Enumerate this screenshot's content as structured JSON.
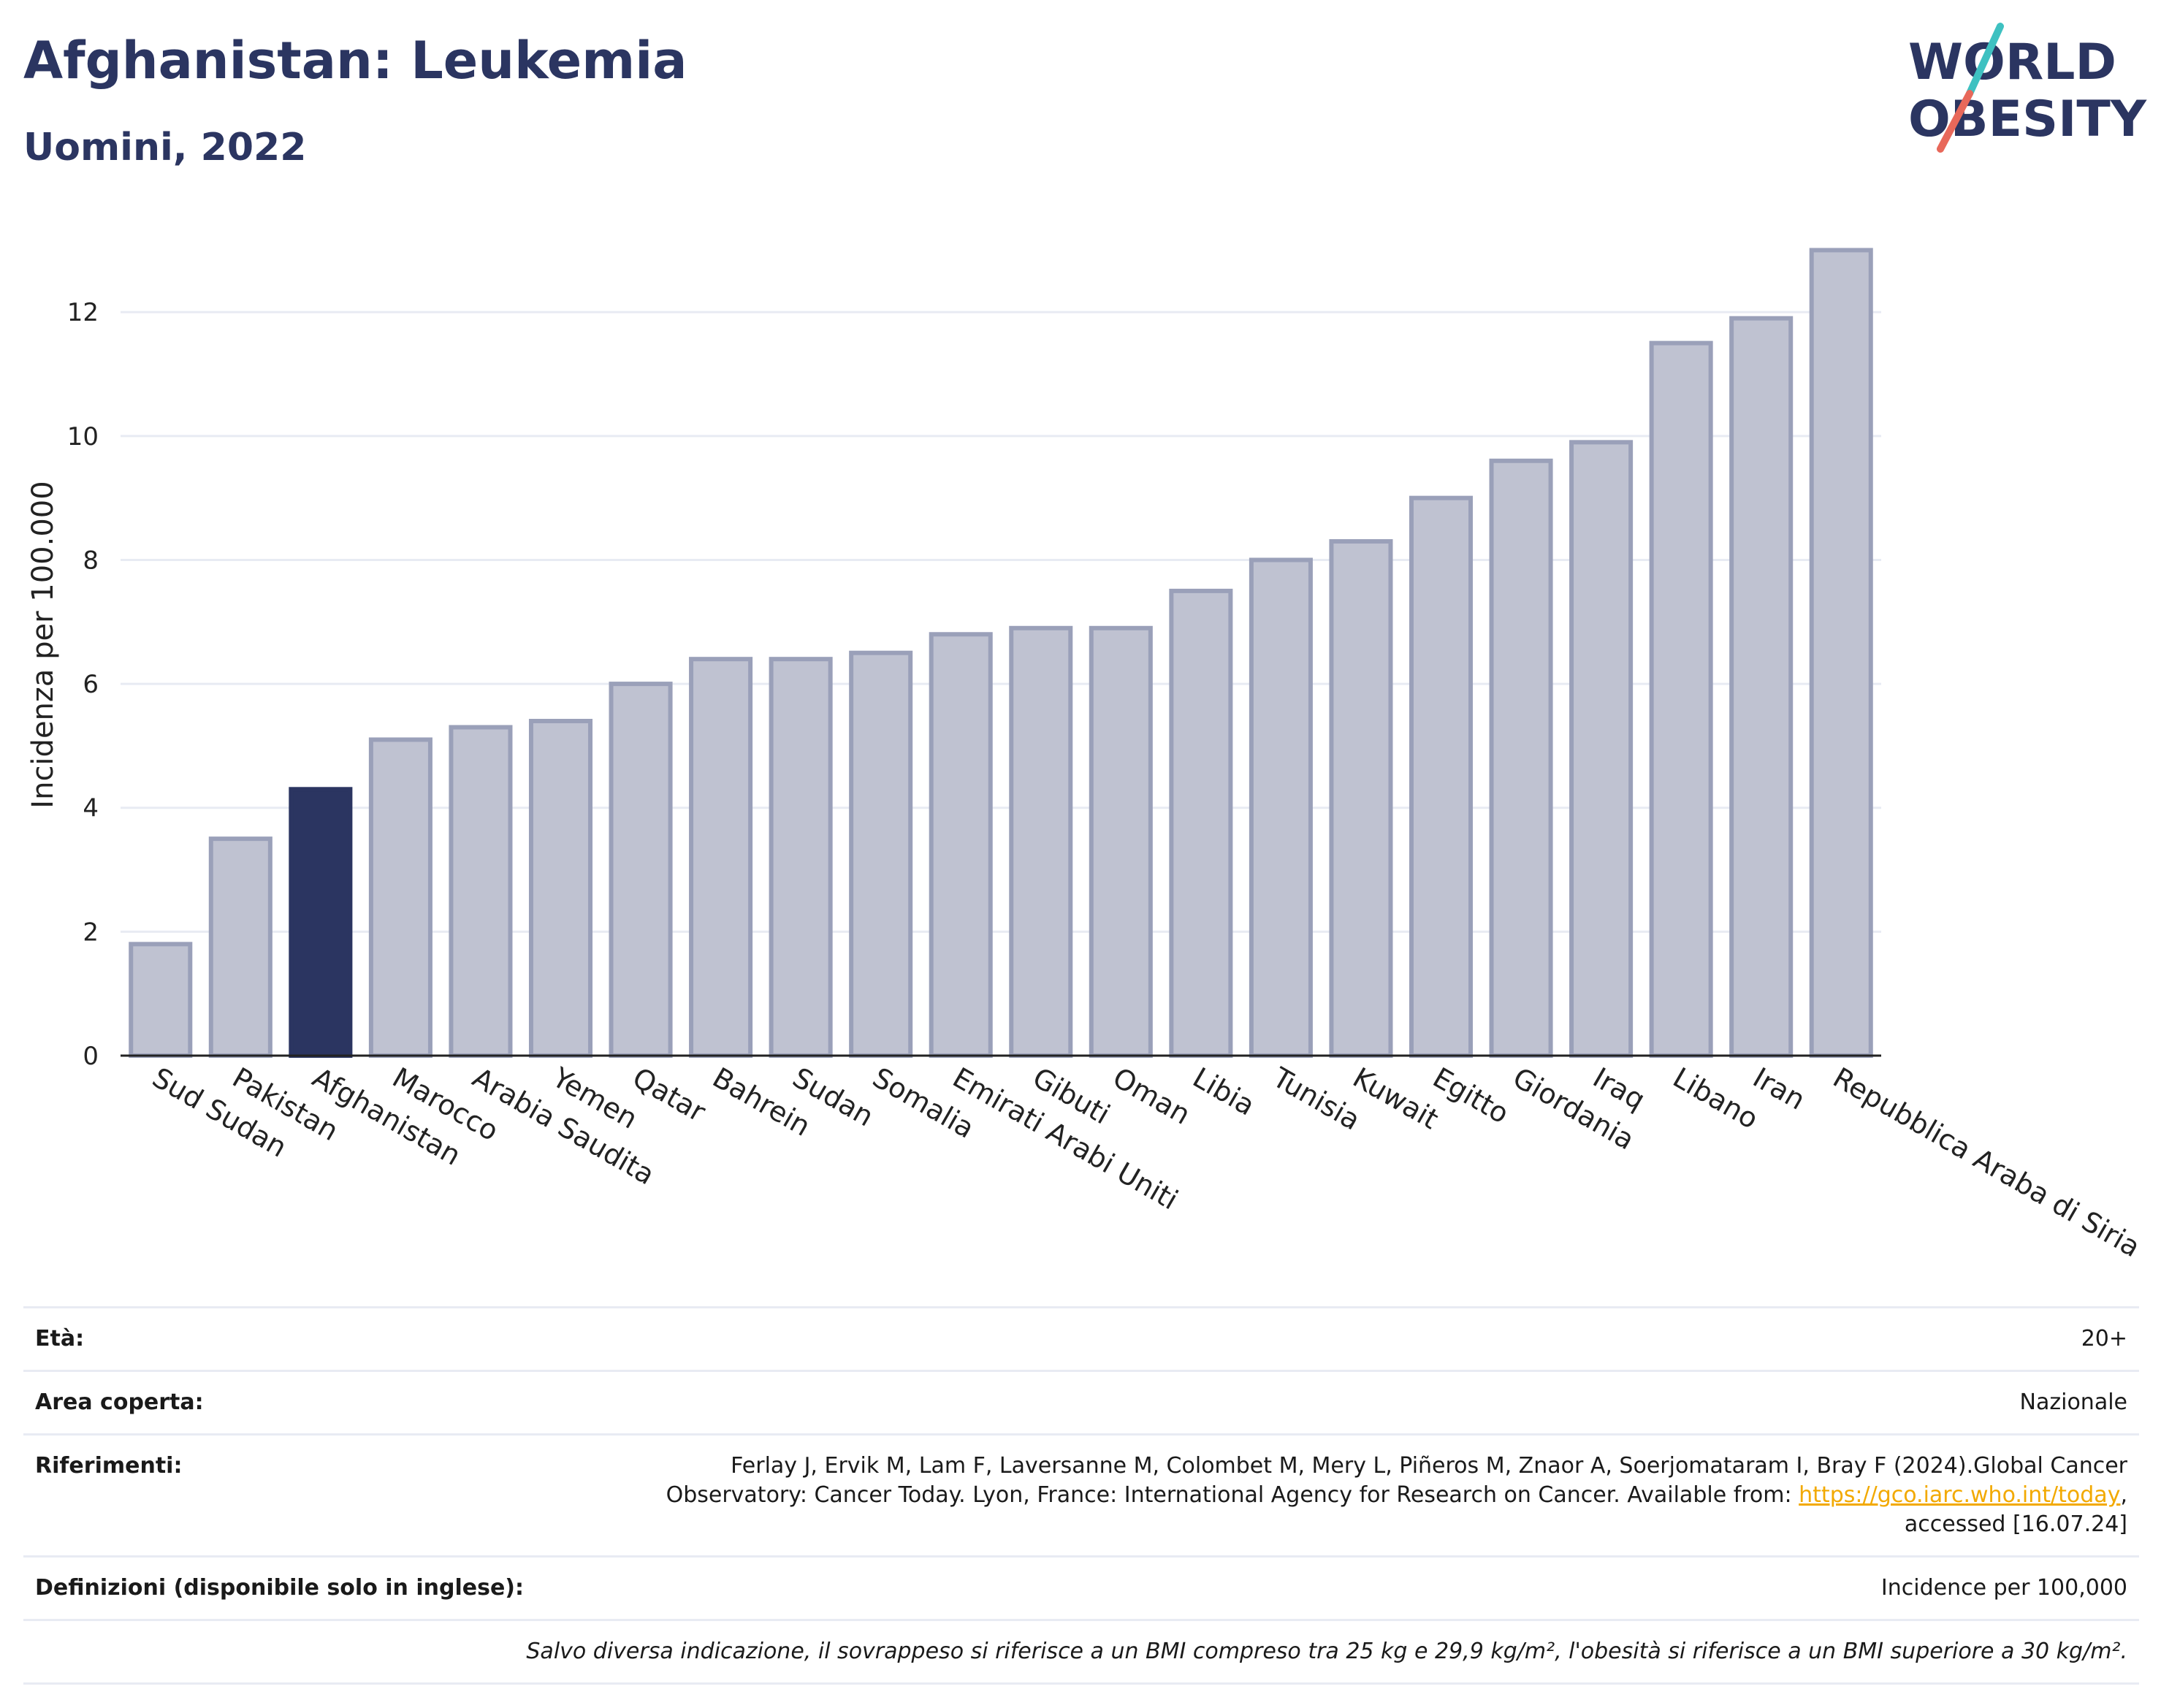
{
  "header": {
    "title": "Afghanistan: Leukemia",
    "subtitle": "Uomini, 2022"
  },
  "logo": {
    "line1": "WORLD",
    "line2": "OBESITY",
    "text_color": "#2b3561",
    "slash_colors": [
      "#3ec1c1",
      "#e8685a"
    ]
  },
  "colors": {
    "highlight_bar": "#2b3561",
    "bar_fill": "#bfc2d1",
    "bar_stroke": "#9aa0b9",
    "gridline": "#e8ebf3"
  },
  "chart_data": {
    "type": "bar",
    "categories": [
      "Sud Sudan",
      "Pakistan",
      "Afghanistan",
      "Marocco",
      "Arabia Saudita",
      "Yemen",
      "Qatar",
      "Bahrein",
      "Sudan",
      "Somalia",
      "Emirati Arabi Uniti",
      "Gibuti",
      "Oman",
      "Libia",
      "Tunisia",
      "Kuwait",
      "Egitto",
      "Giordania",
      "Iraq",
      "Libano",
      "Iran",
      "Repubblica Araba di Siria"
    ],
    "values": [
      1.8,
      3.5,
      4.3,
      5.1,
      5.3,
      5.4,
      6.0,
      6.4,
      6.4,
      6.5,
      6.8,
      6.9,
      6.9,
      7.5,
      8.0,
      8.3,
      9.0,
      9.6,
      9.9,
      11.5,
      11.9,
      13.0
    ],
    "highlight": "Afghanistan",
    "ylabel": "Incidenza per 100.000",
    "xlabel": "",
    "ylim": [
      0,
      13.5
    ],
    "yticks": [
      0,
      2,
      4,
      6,
      8,
      10,
      12
    ],
    "grid": true
  },
  "info": {
    "age_label": "Età:",
    "age_value": "20+",
    "area_label": "Area coperta:",
    "area_value": "Nazionale",
    "refs_label": "Riferimenti:",
    "refs_text_1": "Ferlay J, Ervik M, Lam F, Laversanne M, Colombet M, Mery L, Piñeros M, Znaor A, Soerjomataram I, Bray F (2024).Global Cancer Observatory: Cancer Today. Lyon, France: International Agency for Research on Cancer. Available from:",
    "refs_link": "https://gco.iarc.who.int/today",
    "refs_text_2": ", accessed [16.07.24]",
    "defs_label": "Definizioni (disponibile solo in inglese):",
    "defs_value": "Incidence per 100,000",
    "note": "Salvo diversa indicazione, il sovrappeso si riferisce a un BMI compreso tra 25 kg e 29,9 kg/m², l'obesità si riferisce a un BMI superiore a 30 kg/m²."
  }
}
